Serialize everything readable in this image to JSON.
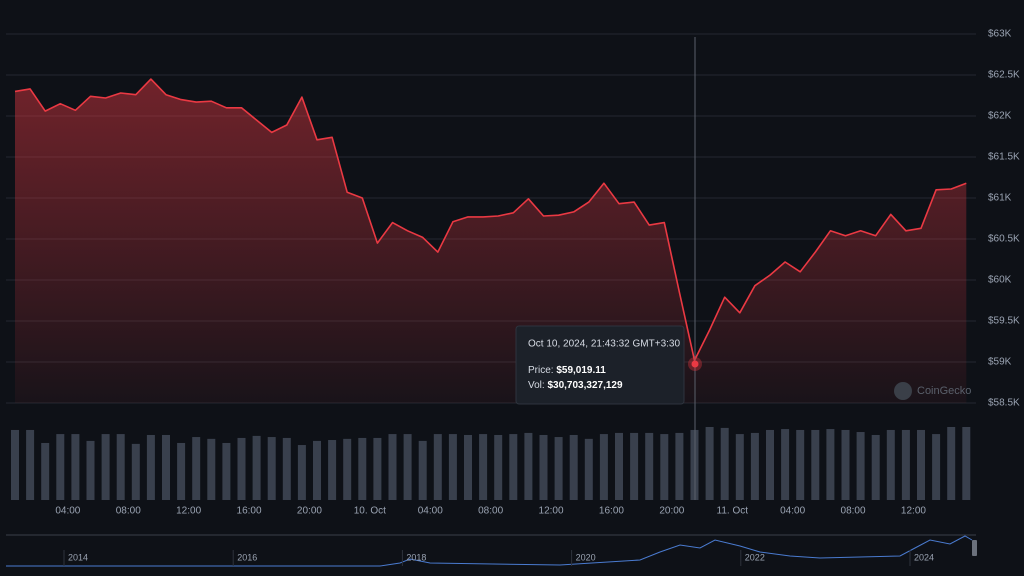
{
  "chart_data": {
    "type": "area",
    "color": "#ea3943",
    "volume_color": "#39404d",
    "grid": true,
    "categories": [
      null,
      null,
      null,
      null,
      "04:00",
      null,
      null,
      null,
      "08:00",
      null,
      null,
      null,
      "12:00",
      null,
      null,
      null,
      "16:00",
      null,
      null,
      null,
      "20:00",
      null,
      null,
      null,
      "10. Oct",
      null,
      null,
      null,
      "04:00",
      null,
      null,
      null,
      "08:00",
      null,
      null,
      null,
      "12:00",
      null,
      null,
      null,
      "16:00",
      null,
      null,
      null,
      "20:00",
      null,
      null,
      null,
      "11. Oct",
      null,
      null,
      null,
      "04:00",
      null,
      null,
      null,
      "08:00",
      null,
      null,
      null,
      "12:00",
      null,
      null,
      null
    ],
    "values": [
      62300,
      62330,
      62060,
      62150,
      62070,
      62240,
      62220,
      62280,
      62260,
      62450,
      62260,
      62200,
      62170,
      62180,
      62100,
      62100,
      61950,
      61800,
      61890,
      62230,
      61710,
      61740,
      61070,
      61000,
      60450,
      60700,
      60600,
      60520,
      60340,
      60710,
      60770,
      60770,
      60780,
      60820,
      60990,
      60780,
      60790,
      60830,
      60950,
      61180,
      60930,
      60950,
      60670,
      60700,
      59850,
      59019.11,
      59390,
      59790,
      59600,
      59930,
      60060,
      60220,
      60100,
      60340,
      60600,
      60540,
      60600,
      60540,
      60800,
      60600,
      60630,
      61100,
      61110,
      61180
    ],
    "volumes": [
      30700000000,
      30700000000,
      25000000000,
      28900000000,
      28900000000,
      25900000000,
      28900000000,
      28900000000,
      24600000000,
      28500000000,
      28500000000,
      25000000000,
      27600000000,
      26800000000,
      25000000000,
      27200000000,
      28100000000,
      27600000000,
      27200000000,
      24100000000,
      25900000000,
      26300000000,
      26800000000,
      27200000000,
      27200000000,
      28900000000,
      28900000000,
      25900000000,
      28900000000,
      28900000000,
      28500000000,
      28900000000,
      28500000000,
      28900000000,
      29400000000,
      28500000000,
      27600000000,
      28500000000,
      26800000000,
      28900000000,
      29400000000,
      29400000000,
      29400000000,
      28900000000,
      29400000000,
      30703327129,
      32000000000,
      31600000000,
      28900000000,
      29400000000,
      30700000000,
      31100000000,
      30700000000,
      30700000000,
      31100000000,
      30700000000,
      29800000000,
      28500000000,
      30700000000,
      30700000000,
      30700000000,
      28900000000,
      32000000000,
      32000000000
    ],
    "ylim": [
      58500,
      63000
    ],
    "yticks": [
      {
        "value": 58500,
        "label": "$58.5K"
      },
      {
        "value": 59000,
        "label": "$59K"
      },
      {
        "value": 59500,
        "label": "$59.5K"
      },
      {
        "value": 60000,
        "label": "$60K"
      },
      {
        "value": 60500,
        "label": "$60.5K"
      },
      {
        "value": 61000,
        "label": "$61K"
      },
      {
        "value": 61500,
        "label": "$61.5K"
      },
      {
        "value": 62000,
        "label": "$62K"
      },
      {
        "value": 62500,
        "label": "$62.5K"
      },
      {
        "value": 63000,
        "label": "$63K"
      }
    ],
    "tooltip": {
      "date": "Oct 10, 2024, 21:43:32 GMT+3:30",
      "price_label": "Price:",
      "price": "$59,019.11",
      "vol_label": "Vol:",
      "vol": "$30,703,327,129"
    },
    "watermark": "CoinGecko",
    "navigator_labels": [
      "2014",
      "2016",
      "2018",
      "2020",
      "2022",
      "2024"
    ]
  }
}
